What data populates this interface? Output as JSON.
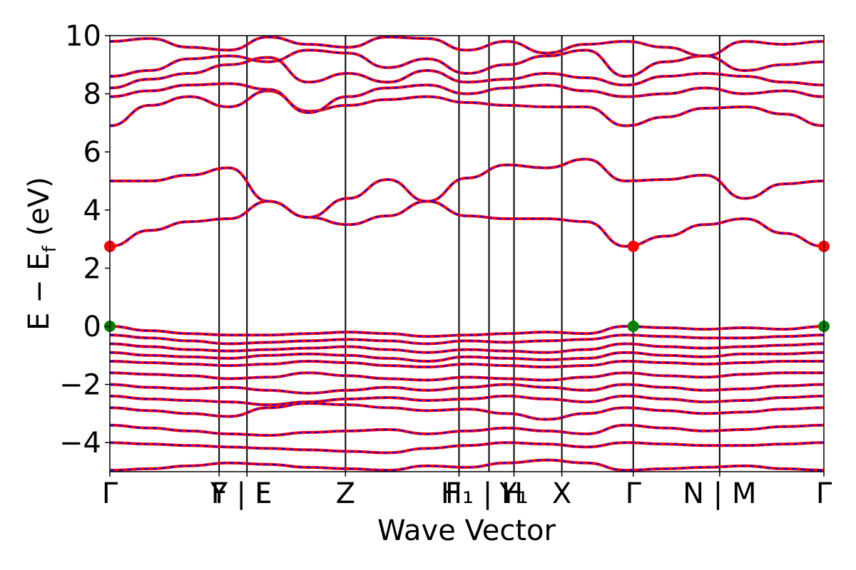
{
  "chart_data": {
    "type": "line",
    "xlabel": "Wave Vector",
    "ylabel": "E − E_f (eV)",
    "ylabel_main": "E − E",
    "ylabel_sub": "f",
    "ylabel_unit": "(eV)",
    "ylim": [
      -5,
      10
    ],
    "yticks": [
      -4,
      -2,
      0,
      2,
      4,
      6,
      8,
      10
    ],
    "ytick_labels": [
      "−4",
      "−2",
      "0",
      "2",
      "4",
      "6",
      "8",
      "10"
    ],
    "xlim": [
      0,
      100
    ],
    "kpath": [
      {
        "x": 0.0,
        "label": "Γ"
      },
      {
        "x": 15.3,
        "label": "Y"
      },
      {
        "x": 19.2,
        "label": "F | F"
      },
      {
        "x": 19.2,
        "label": "L"
      },
      {
        "x": 33.0,
        "label": "Z"
      },
      {
        "x": 48.9,
        "label": "F"
      },
      {
        "x": 48.9,
        "label": "H₁ | H"
      },
      {
        "x": 56.6,
        "label": "Y₁"
      },
      {
        "x": 63.3,
        "label": "X"
      },
      {
        "x": 73.3,
        "label": "Γ"
      },
      {
        "x": 85.4,
        "label": "N | M"
      },
      {
        "x": 100.0,
        "label": "Γ"
      }
    ],
    "segment_breaks": [
      15.3,
      19.2,
      33.0,
      48.9,
      53.1,
      56.6,
      63.3,
      73.3,
      85.4
    ],
    "series": [
      {
        "color": "#ff0000",
        "style": "solid"
      },
      {
        "color": "#0000ff",
        "style": "dashed"
      }
    ],
    "bands": [
      {
        "y": [
          2.75,
          3.3,
          3.6,
          3.7,
          4.3,
          3.75,
          3.5,
          3.8,
          4.3,
          3.8,
          3.7,
          3.7,
          3.6,
          2.75,
          3.1,
          3.5,
          3.7,
          3.2,
          2.75
        ]
      },
      {
        "y": [
          5.0,
          5.0,
          5.2,
          5.45,
          4.3,
          3.75,
          4.4,
          5.05,
          4.3,
          5.1,
          5.55,
          5.45,
          5.75,
          5.0,
          5.05,
          5.2,
          4.4,
          4.9,
          5.0
        ]
      },
      {
        "y": [
          6.9,
          7.6,
          7.9,
          7.55,
          8.1,
          7.4,
          7.6,
          7.8,
          7.9,
          7.7,
          7.6,
          7.55,
          7.55,
          6.9,
          7.2,
          7.5,
          7.55,
          7.3,
          6.9
        ]
      },
      {
        "y": [
          7.9,
          8.1,
          8.3,
          8.35,
          8.15,
          7.35,
          7.9,
          8.2,
          8.3,
          8.0,
          8.2,
          8.3,
          8.1,
          7.9,
          8.0,
          8.2,
          8.0,
          8.1,
          7.9
        ]
      },
      {
        "y": [
          8.2,
          8.5,
          8.7,
          9.0,
          9.25,
          8.4,
          8.7,
          8.4,
          8.8,
          8.4,
          8.5,
          8.7,
          8.55,
          8.3,
          8.6,
          8.7,
          8.6,
          8.4,
          8.3
        ]
      },
      {
        "y": [
          8.6,
          8.8,
          9.2,
          9.3,
          9.1,
          9.5,
          9.4,
          8.9,
          9.2,
          8.7,
          9.0,
          9.3,
          9.5,
          8.6,
          9.1,
          9.3,
          8.8,
          9.0,
          9.1
        ]
      },
      {
        "y": [
          9.8,
          9.9,
          9.6,
          9.5,
          9.95,
          9.7,
          9.6,
          9.95,
          9.9,
          9.5,
          9.8,
          9.4,
          9.7,
          9.8,
          9.6,
          9.3,
          9.8,
          9.7,
          9.8
        ]
      },
      {
        "y": [
          0.0,
          -0.15,
          -0.25,
          -0.3,
          -0.3,
          -0.25,
          -0.2,
          -0.25,
          -0.35,
          -0.3,
          -0.25,
          -0.2,
          -0.25,
          0.0,
          -0.05,
          -0.1,
          -0.05,
          -0.1,
          0.0
        ]
      },
      {
        "y": [
          -0.3,
          -0.4,
          -0.5,
          -0.6,
          -0.55,
          -0.5,
          -0.45,
          -0.5,
          -0.6,
          -0.5,
          -0.55,
          -0.5,
          -0.45,
          -0.3,
          -0.35,
          -0.4,
          -0.4,
          -0.35,
          -0.3
        ]
      },
      {
        "y": [
          -0.6,
          -0.7,
          -0.8,
          -0.85,
          -0.8,
          -0.75,
          -0.7,
          -0.8,
          -0.9,
          -0.8,
          -0.85,
          -0.9,
          -0.8,
          -0.6,
          -0.7,
          -0.75,
          -0.7,
          -0.65,
          -0.6
        ]
      },
      {
        "y": [
          -0.9,
          -1.0,
          -1.05,
          -1.1,
          -1.0,
          -0.95,
          -1.0,
          -1.1,
          -1.2,
          -1.05,
          -1.1,
          -1.15,
          -1.1,
          -0.9,
          -1.0,
          -1.05,
          -0.95,
          -0.95,
          -0.9
        ]
      },
      {
        "y": [
          -1.2,
          -1.25,
          -1.3,
          -1.35,
          -1.3,
          -1.2,
          -1.25,
          -1.35,
          -1.4,
          -1.3,
          -1.35,
          -1.4,
          -1.35,
          -1.2,
          -1.25,
          -1.3,
          -1.25,
          -1.2,
          -1.2
        ]
      },
      {
        "y": [
          -1.6,
          -1.65,
          -1.7,
          -1.8,
          -1.75,
          -1.6,
          -1.7,
          -1.8,
          -1.85,
          -1.75,
          -1.8,
          -1.85,
          -1.75,
          -1.6,
          -1.7,
          -1.75,
          -1.65,
          -1.6,
          -1.6
        ]
      },
      {
        "y": [
          -2.0,
          -2.1,
          -2.15,
          -2.1,
          -2.2,
          -2.3,
          -2.2,
          -2.1,
          -2.2,
          -2.1,
          -2.0,
          -2.1,
          -2.2,
          -2.0,
          -2.1,
          -2.2,
          -2.15,
          -2.05,
          -2.0
        ]
      },
      {
        "y": [
          -2.4,
          -2.5,
          -2.55,
          -2.6,
          -2.7,
          -2.6,
          -2.5,
          -2.45,
          -2.55,
          -2.5,
          -2.4,
          -2.5,
          -2.6,
          -2.4,
          -2.5,
          -2.6,
          -2.55,
          -2.45,
          -2.4
        ]
      },
      {
        "y": [
          -2.8,
          -2.9,
          -3.0,
          -3.1,
          -2.8,
          -2.65,
          -2.7,
          -2.8,
          -2.9,
          -2.85,
          -3.0,
          -3.2,
          -3.0,
          -2.8,
          -2.9,
          -3.0,
          -2.95,
          -2.85,
          -2.8
        ]
      },
      {
        "y": [
          -3.4,
          -3.5,
          -3.6,
          -3.7,
          -3.75,
          -3.65,
          -3.6,
          -3.55,
          -3.7,
          -3.6,
          -3.5,
          -3.6,
          -3.7,
          -3.4,
          -3.5,
          -3.6,
          -3.55,
          -3.45,
          -3.4
        ]
      },
      {
        "y": [
          -4.0,
          -4.05,
          -4.1,
          -4.15,
          -4.2,
          -4.25,
          -4.3,
          -4.35,
          -4.2,
          -4.1,
          -4.0,
          -4.05,
          -4.15,
          -4.0,
          -4.05,
          -4.1,
          -4.1,
          -4.05,
          -4.0
        ]
      },
      {
        "y": [
          -4.95,
          -4.9,
          -4.8,
          -4.7,
          -4.75,
          -4.85,
          -4.9,
          -4.95,
          -4.8,
          -4.85,
          -4.7,
          -4.6,
          -4.7,
          -4.95,
          -4.9,
          -4.85,
          -4.8,
          -4.9,
          -4.95
        ]
      }
    ],
    "markers": [
      {
        "x": 0.0,
        "y": 2.75,
        "color": "#ff0000"
      },
      {
        "x": 73.3,
        "y": 2.75,
        "color": "#ff0000"
      },
      {
        "x": 100.0,
        "y": 2.75,
        "color": "#ff0000"
      },
      {
        "x": 0.0,
        "y": 0.0,
        "color": "#008000"
      },
      {
        "x": 73.3,
        "y": 0.0,
        "color": "#008000"
      },
      {
        "x": 100.0,
        "y": 0.0,
        "color": "#008000"
      }
    ]
  }
}
